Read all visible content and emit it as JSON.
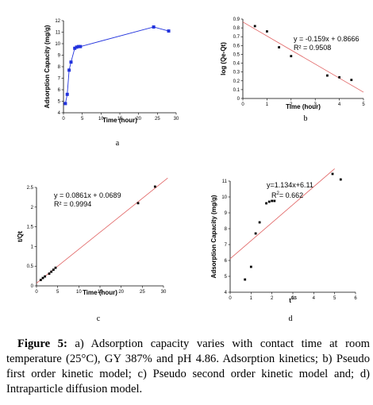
{
  "chart_data": [
    {
      "type": "line",
      "panel_label": "a",
      "xlabel": "Time (hour)",
      "ylabel": "Adsorption Capacity (mg/g)",
      "xlim": [
        0,
        30
      ],
      "ylim": [
        4,
        12
      ],
      "xticks": [
        "0",
        "5",
        "10",
        "15",
        "20",
        "25",
        "30"
      ],
      "yticks": [
        "4",
        "5",
        "6",
        "7",
        "8",
        "9",
        "10",
        "11",
        "12"
      ],
      "series": [
        {
          "color": "#2233dd",
          "x": [
            0.5,
            1,
            1.5,
            2,
            3,
            3.5,
            4,
            4.5,
            24,
            28
          ],
          "y": [
            4.8,
            5.6,
            7.7,
            8.4,
            9.6,
            9.7,
            9.75,
            9.75,
            11.45,
            11.1
          ]
        }
      ]
    },
    {
      "type": "scatter",
      "panel_label": "b",
      "xlabel": "Time (hour)",
      "ylabel": "log (Qe-Qt)",
      "xlim": [
        0,
        5
      ],
      "ylim": [
        0,
        0.9
      ],
      "xticks": [
        "0",
        "1",
        "2",
        "3",
        "4",
        "5"
      ],
      "yticks": [
        "0",
        "0.1",
        "0.2",
        "0.3",
        "0.4",
        "0.5",
        "0.6",
        "0.7",
        "0.8",
        "0.9"
      ],
      "equation": "y = -0.159x + 0.8666",
      "r2": "R² = 0.9508",
      "trendline": {
        "slope": -0.159,
        "intercept": 0.8666,
        "x_range": [
          0,
          5
        ],
        "color": "#e06060"
      },
      "points": {
        "x": [
          0.5,
          1,
          1.5,
          2,
          3.5,
          4,
          4.5
        ],
        "y": [
          0.82,
          0.76,
          0.58,
          0.48,
          0.26,
          0.24,
          0.21
        ]
      }
    },
    {
      "type": "scatter",
      "panel_label": "c",
      "xlabel": "Time (hour)",
      "ylabel": "t/Qt",
      "xlim": [
        0,
        30
      ],
      "ylim": [
        0,
        2.5
      ],
      "xticks": [
        "0",
        "5",
        "10",
        "15",
        "20",
        "25",
        "30"
      ],
      "yticks": [
        "0",
        "0.5",
        "1",
        "1.5",
        "2",
        "2.5"
      ],
      "equation": "y = 0.0861x + 0.0689",
      "r2": "R² = 0.9994",
      "trendline": {
        "slope": 0.0861,
        "intercept": 0.0689,
        "x_range": [
          0,
          31
        ],
        "color": "#e06060"
      },
      "points": {
        "x": [
          1,
          1.5,
          2,
          3,
          3.5,
          4,
          4.5,
          24,
          28
        ],
        "y": [
          0.15,
          0.2,
          0.24,
          0.31,
          0.36,
          0.41,
          0.46,
          2.1,
          2.52
        ]
      }
    },
    {
      "type": "scatter",
      "panel_label": "d",
      "xlabel": "t",
      "xlabel_sup": "0.5",
      "ylabel": "Adsorption Capacity (mg/g)",
      "xlim": [
        0,
        6
      ],
      "ylim": [
        4,
        11
      ],
      "xticks": [
        "0",
        "1",
        "2",
        "3",
        "4",
        "5",
        "6"
      ],
      "yticks": [
        "4",
        "5",
        "6",
        "7",
        "8",
        "9",
        "10",
        "11"
      ],
      "equation": "y=1.134x+6.11",
      "r2_prefix": "R",
      "r2_sup": "2",
      "r2_value": "= 0.662",
      "trendline": {
        "slope": 1.134,
        "intercept": 6.11,
        "x_range": [
          0,
          5
        ],
        "color": "#e06060"
      },
      "points": {
        "x": [
          0.71,
          1,
          1.22,
          1.41,
          1.73,
          1.87,
          2,
          2.12,
          4.9,
          5.29
        ],
        "y": [
          4.8,
          5.6,
          7.7,
          8.4,
          9.6,
          9.7,
          9.75,
          9.75,
          11.45,
          11.1
        ]
      }
    }
  ],
  "caption": {
    "label": "Figure 5:",
    "text": " a) Adsorption capacity varies with contact time at room temperature (25°C), GY 387% and pH 4.86. Adsorption kinetics; b) Pseudo first order kinetic model; c) Pseudo second order kinetic model and; d) Intraparticle diffusion model."
  }
}
